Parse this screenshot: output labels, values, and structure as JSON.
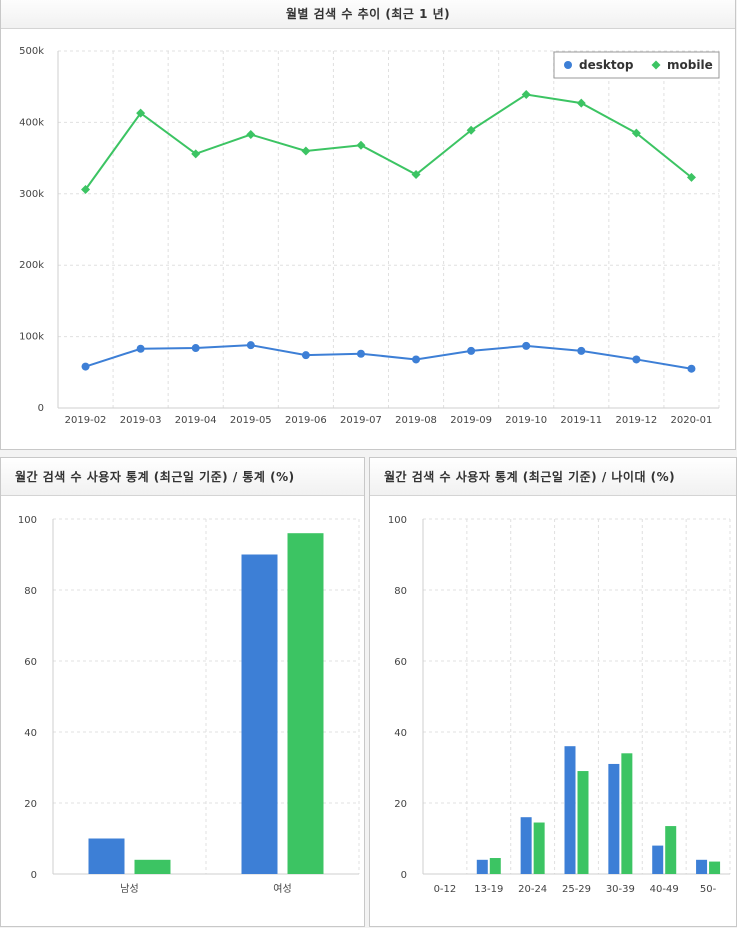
{
  "colors": {
    "desktop": "#3d7fd6",
    "mobile": "#3cc463",
    "grid": "#e0e0e0"
  },
  "chart_data": [
    {
      "type": "line",
      "title": "월별 검색 수 추이 (최근 1 년)",
      "xlabel": "",
      "ylabel": "",
      "x": [
        "2019-02",
        "2019-03",
        "2019-04",
        "2019-05",
        "2019-06",
        "2019-07",
        "2019-08",
        "2019-09",
        "2019-10",
        "2019-11",
        "2019-12",
        "2020-01"
      ],
      "yticks": [
        "0",
        "100k",
        "200k",
        "300k",
        "400k",
        "500k"
      ],
      "ylim": [
        0,
        500000
      ],
      "grid": true,
      "legend": "top-right",
      "series": [
        {
          "name": "desktop",
          "color": "#3d7fd6",
          "marker": "circle",
          "values": [
            58000,
            83000,
            84000,
            88000,
            74000,
            76000,
            68000,
            80000,
            87000,
            80000,
            68000,
            55000
          ]
        },
        {
          "name": "mobile",
          "color": "#3cc463",
          "marker": "diamond",
          "values": [
            306000,
            413000,
            356000,
            383000,
            360000,
            368000,
            327000,
            389000,
            439000,
            427000,
            385000,
            323000
          ]
        }
      ]
    },
    {
      "type": "bar",
      "title": "월간 검색 수 사용자 통계 (최근일 기준) / 통계 (%)",
      "xlabel": "",
      "ylabel": "",
      "categories": [
        "남성",
        "여성"
      ],
      "yticks": [
        "0",
        "20",
        "40",
        "60",
        "80",
        "100"
      ],
      "ylim": [
        0,
        100
      ],
      "grid": true,
      "series": [
        {
          "name": "desktop",
          "color": "#3d7fd6",
          "values": [
            10,
            90
          ]
        },
        {
          "name": "mobile",
          "color": "#3cc463",
          "values": [
            4,
            96
          ]
        }
      ]
    },
    {
      "type": "bar",
      "title": "월간 검색 수 사용자 통계 (최근일 기준) / 나이대 (%)",
      "xlabel": "",
      "ylabel": "",
      "categories": [
        "0-12",
        "13-19",
        "20-24",
        "25-29",
        "30-39",
        "40-49",
        "50-"
      ],
      "yticks": [
        "0",
        "20",
        "40",
        "60",
        "80",
        "100"
      ],
      "ylim": [
        0,
        100
      ],
      "grid": true,
      "series": [
        {
          "name": "desktop",
          "color": "#3d7fd6",
          "values": [
            0,
            4,
            16,
            36,
            31,
            8,
            4
          ]
        },
        {
          "name": "mobile",
          "color": "#3cc463",
          "values": [
            0,
            4.5,
            14.5,
            29,
            34,
            13.5,
            3.5
          ]
        }
      ]
    }
  ]
}
